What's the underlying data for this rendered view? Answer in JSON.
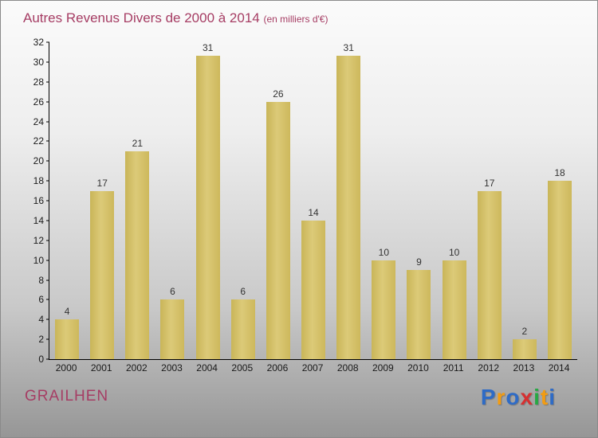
{
  "header": {
    "title": "Autres Revenus Divers de 2000 à 2014",
    "subtitle": "(en milliers d'€)"
  },
  "footer": {
    "name": "GRAILHEN",
    "logo_letters": [
      {
        "ch": "P",
        "color": "#2e6bc6"
      },
      {
        "ch": "r",
        "color": "#f39c12"
      },
      {
        "ch": "o",
        "color": "#2e6bc6"
      },
      {
        "ch": "x",
        "color": "#d63031"
      },
      {
        "ch": "i",
        "color": "#27a844"
      },
      {
        "ch": "t",
        "color": "#f39c12"
      },
      {
        "ch": "i",
        "color": "#2e6bc6"
      }
    ]
  },
  "colors": {
    "bar": "#d2bf63",
    "title": "#a63d64",
    "axis": "#000000",
    "value_label": "#333333"
  },
  "chart_data": {
    "type": "bar",
    "title": "Autres Revenus Divers de 2000 à 2014",
    "subtitle": "(en milliers d'€)",
    "categories": [
      "2000",
      "2001",
      "2002",
      "2003",
      "2004",
      "2005",
      "2006",
      "2007",
      "2008",
      "2009",
      "2010",
      "2011",
      "2012",
      "2013",
      "2014"
    ],
    "values": [
      4,
      17,
      21,
      6,
      31,
      6,
      26,
      14,
      31,
      10,
      9,
      10,
      17,
      2,
      18
    ],
    "xlabel": "",
    "ylabel": "",
    "ylim": [
      0,
      32
    ],
    "ytick_step": 2,
    "grid": false,
    "legend": false
  }
}
